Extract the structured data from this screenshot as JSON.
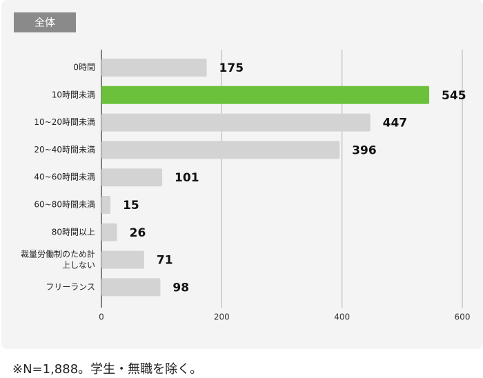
{
  "badge": "全体",
  "chart_data": {
    "type": "barh",
    "categories": [
      "0時間",
      "10時間未満",
      "10~20時間未満",
      "20~40時間未満",
      "40~60時間未満",
      "60~80時間未満",
      "80時間以上",
      "裁量労働制のため計上しない",
      "フリーランス"
    ],
    "values": [
      175,
      545,
      447,
      396,
      101,
      15,
      26,
      71,
      98
    ],
    "colors": [
      "#d3d3d3",
      "#6cc13c",
      "#d3d3d3",
      "#d3d3d3",
      "#d3d3d3",
      "#d3d3d3",
      "#d3d3d3",
      "#d3d3d3",
      "#d3d3d3"
    ],
    "xlim": [
      0,
      600
    ],
    "xticks": [
      0,
      200,
      400,
      600
    ],
    "grid": true
  },
  "footnote": "※N=1,888。学生・無職を除く。"
}
